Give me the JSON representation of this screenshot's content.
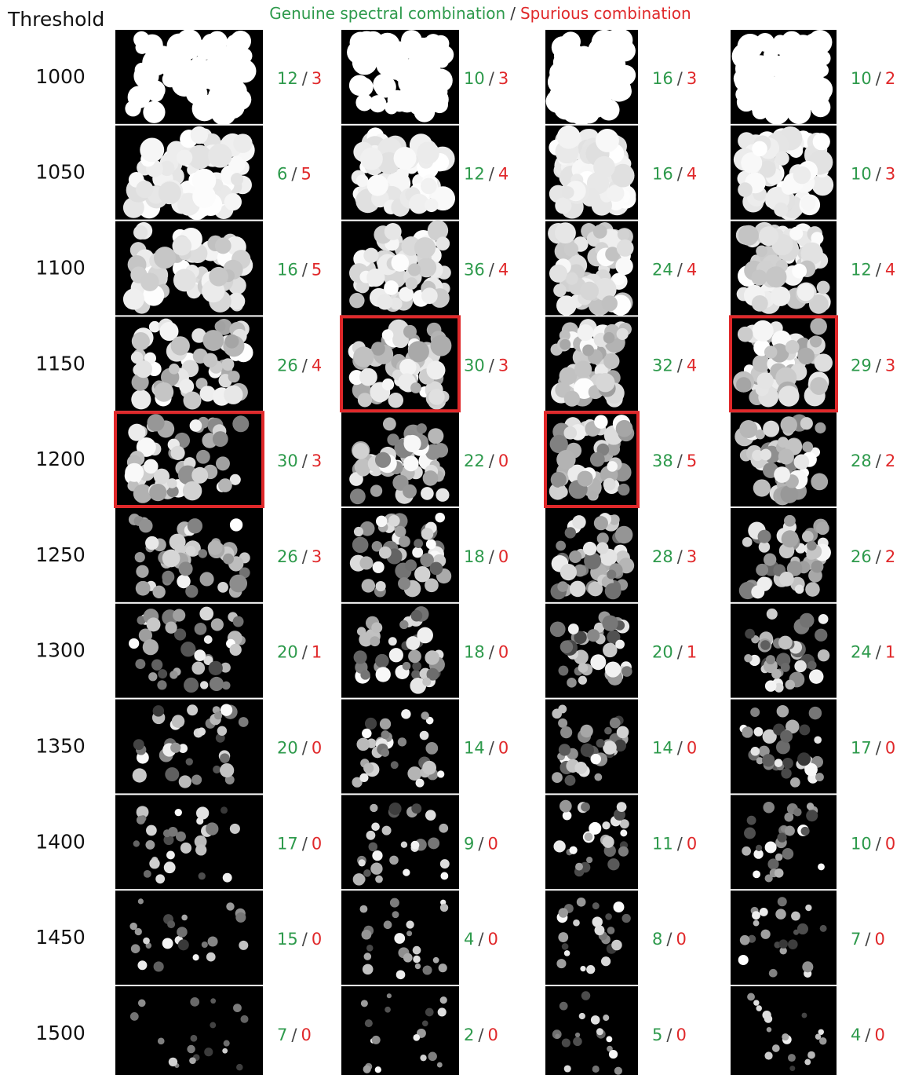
{
  "header": {
    "threshold_label": "Threshold",
    "genuine_label": "Genuine spectral combination",
    "separator": "/",
    "spurious_label": "Spurious combination"
  },
  "colors": {
    "genuine": "#2e9a4c",
    "spurious": "#e0282a",
    "highlight": "#e0282a"
  },
  "rows": [
    {
      "threshold": 1000,
      "cells": [
        {
          "genuine": 12,
          "spurious": 3
        },
        {
          "genuine": 10,
          "spurious": 3
        },
        {
          "genuine": 16,
          "spurious": 3
        },
        {
          "genuine": 10,
          "spurious": 2
        }
      ]
    },
    {
      "threshold": 1050,
      "cells": [
        {
          "genuine": 6,
          "spurious": 5
        },
        {
          "genuine": 12,
          "spurious": 4
        },
        {
          "genuine": 16,
          "spurious": 4
        },
        {
          "genuine": 10,
          "spurious": 3
        }
      ]
    },
    {
      "threshold": 1100,
      "cells": [
        {
          "genuine": 16,
          "spurious": 5
        },
        {
          "genuine": 36,
          "spurious": 4
        },
        {
          "genuine": 24,
          "spurious": 4
        },
        {
          "genuine": 12,
          "spurious": 4
        }
      ]
    },
    {
      "threshold": 1150,
      "cells": [
        {
          "genuine": 26,
          "spurious": 4
        },
        {
          "genuine": 30,
          "spurious": 3
        },
        {
          "genuine": 32,
          "spurious": 4
        },
        {
          "genuine": 29,
          "spurious": 3
        }
      ]
    },
    {
      "threshold": 1200,
      "cells": [
        {
          "genuine": 30,
          "spurious": 3
        },
        {
          "genuine": 22,
          "spurious": 0
        },
        {
          "genuine": 38,
          "spurious": 5
        },
        {
          "genuine": 28,
          "spurious": 2
        }
      ]
    },
    {
      "threshold": 1250,
      "cells": [
        {
          "genuine": 26,
          "spurious": 3
        },
        {
          "genuine": 18,
          "spurious": 0
        },
        {
          "genuine": 28,
          "spurious": 3
        },
        {
          "genuine": 26,
          "spurious": 2
        }
      ]
    },
    {
      "threshold": 1300,
      "cells": [
        {
          "genuine": 20,
          "spurious": 1
        },
        {
          "genuine": 18,
          "spurious": 0
        },
        {
          "genuine": 20,
          "spurious": 1
        },
        {
          "genuine": 24,
          "spurious": 1
        }
      ]
    },
    {
      "threshold": 1350,
      "cells": [
        {
          "genuine": 20,
          "spurious": 0
        },
        {
          "genuine": 14,
          "spurious": 0
        },
        {
          "genuine": 14,
          "spurious": 0
        },
        {
          "genuine": 17,
          "spurious": 0
        }
      ]
    },
    {
      "threshold": 1400,
      "cells": [
        {
          "genuine": 17,
          "spurious": 0
        },
        {
          "genuine": 9,
          "spurious": 0
        },
        {
          "genuine": 11,
          "spurious": 0
        },
        {
          "genuine": 10,
          "spurious": 0
        }
      ]
    },
    {
      "threshold": 1450,
      "cells": [
        {
          "genuine": 15,
          "spurious": 0
        },
        {
          "genuine": 4,
          "spurious": 0
        },
        {
          "genuine": 8,
          "spurious": 0
        },
        {
          "genuine": 7,
          "spurious": 0
        }
      ]
    },
    {
      "threshold": 1500,
      "cells": [
        {
          "genuine": 7,
          "spurious": 0
        },
        {
          "genuine": 2,
          "spurious": 0
        },
        {
          "genuine": 5,
          "spurious": 0
        },
        {
          "genuine": 4,
          "spurious": 0
        }
      ]
    }
  ],
  "highlighted": [
    {
      "row": 3,
      "col": 1
    },
    {
      "row": 3,
      "col": 3
    },
    {
      "row": 4,
      "col": 0
    },
    {
      "row": 4,
      "col": 2
    }
  ]
}
